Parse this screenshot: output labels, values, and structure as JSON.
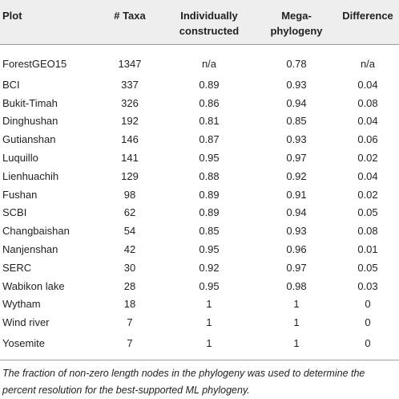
{
  "table": {
    "headers": {
      "plot": "Plot",
      "taxa": "# Taxa",
      "individually_line1": "Individually",
      "individually_line2": "constructed",
      "mega_line1": "Mega-",
      "mega_line2": "phylogeny",
      "difference": "Difference"
    },
    "rows": [
      {
        "plot": "ForestGEO15",
        "taxa": "1347",
        "individually": "n/a",
        "mega": "0.78",
        "difference": "n/a"
      },
      {
        "plot": "BCI",
        "taxa": "337",
        "individually": "0.89",
        "mega": "0.93",
        "difference": "0.04"
      },
      {
        "plot": "Bukit-Timah",
        "taxa": "326",
        "individually": "0.86",
        "mega": "0.94",
        "difference": "0.08"
      },
      {
        "plot": "Dinghushan",
        "taxa": "192",
        "individually": "0.81",
        "mega": "0.85",
        "difference": "0.04"
      },
      {
        "plot": "Gutianshan",
        "taxa": "146",
        "individually": "0.87",
        "mega": "0.93",
        "difference": "0.06"
      },
      {
        "plot": "Luquillo",
        "taxa": "141",
        "individually": "0.95",
        "mega": "0.97",
        "difference": "0.02"
      },
      {
        "plot": "Lienhuachih",
        "taxa": "129",
        "individually": "0.88",
        "mega": "0.92",
        "difference": "0.04"
      },
      {
        "plot": "Fushan",
        "taxa": "98",
        "individually": "0.89",
        "mega": "0.91",
        "difference": "0.02"
      },
      {
        "plot": "SCBI",
        "taxa": "62",
        "individually": "0.89",
        "mega": "0.94",
        "difference": "0.05"
      },
      {
        "plot": "Changbaishan",
        "taxa": "54",
        "individually": "0.85",
        "mega": "0.93",
        "difference": "0.08"
      },
      {
        "plot": "Nanjenshan",
        "taxa": "42",
        "individually": "0.95",
        "mega": "0.96",
        "difference": "0.01"
      },
      {
        "plot": "SERC",
        "taxa": "30",
        "individually": "0.92",
        "mega": "0.97",
        "difference": "0.05"
      },
      {
        "plot": "Wabikon lake",
        "taxa": "28",
        "individually": "0.95",
        "mega": "0.98",
        "difference": "0.03"
      },
      {
        "plot": "Wytham",
        "taxa": "18",
        "individually": "1",
        "mega": "1",
        "difference": "0"
      },
      {
        "plot": "Wind river",
        "taxa": "7",
        "individually": "1",
        "mega": "1",
        "difference": "0"
      },
      {
        "plot": "Yosemite",
        "taxa": "7",
        "individually": "1",
        "mega": "1",
        "difference": "0"
      }
    ]
  },
  "footnote": "The fraction of non-zero length nodes in the phylogeny was used to determine the percent resolution for the best-supported ML phylogeny."
}
